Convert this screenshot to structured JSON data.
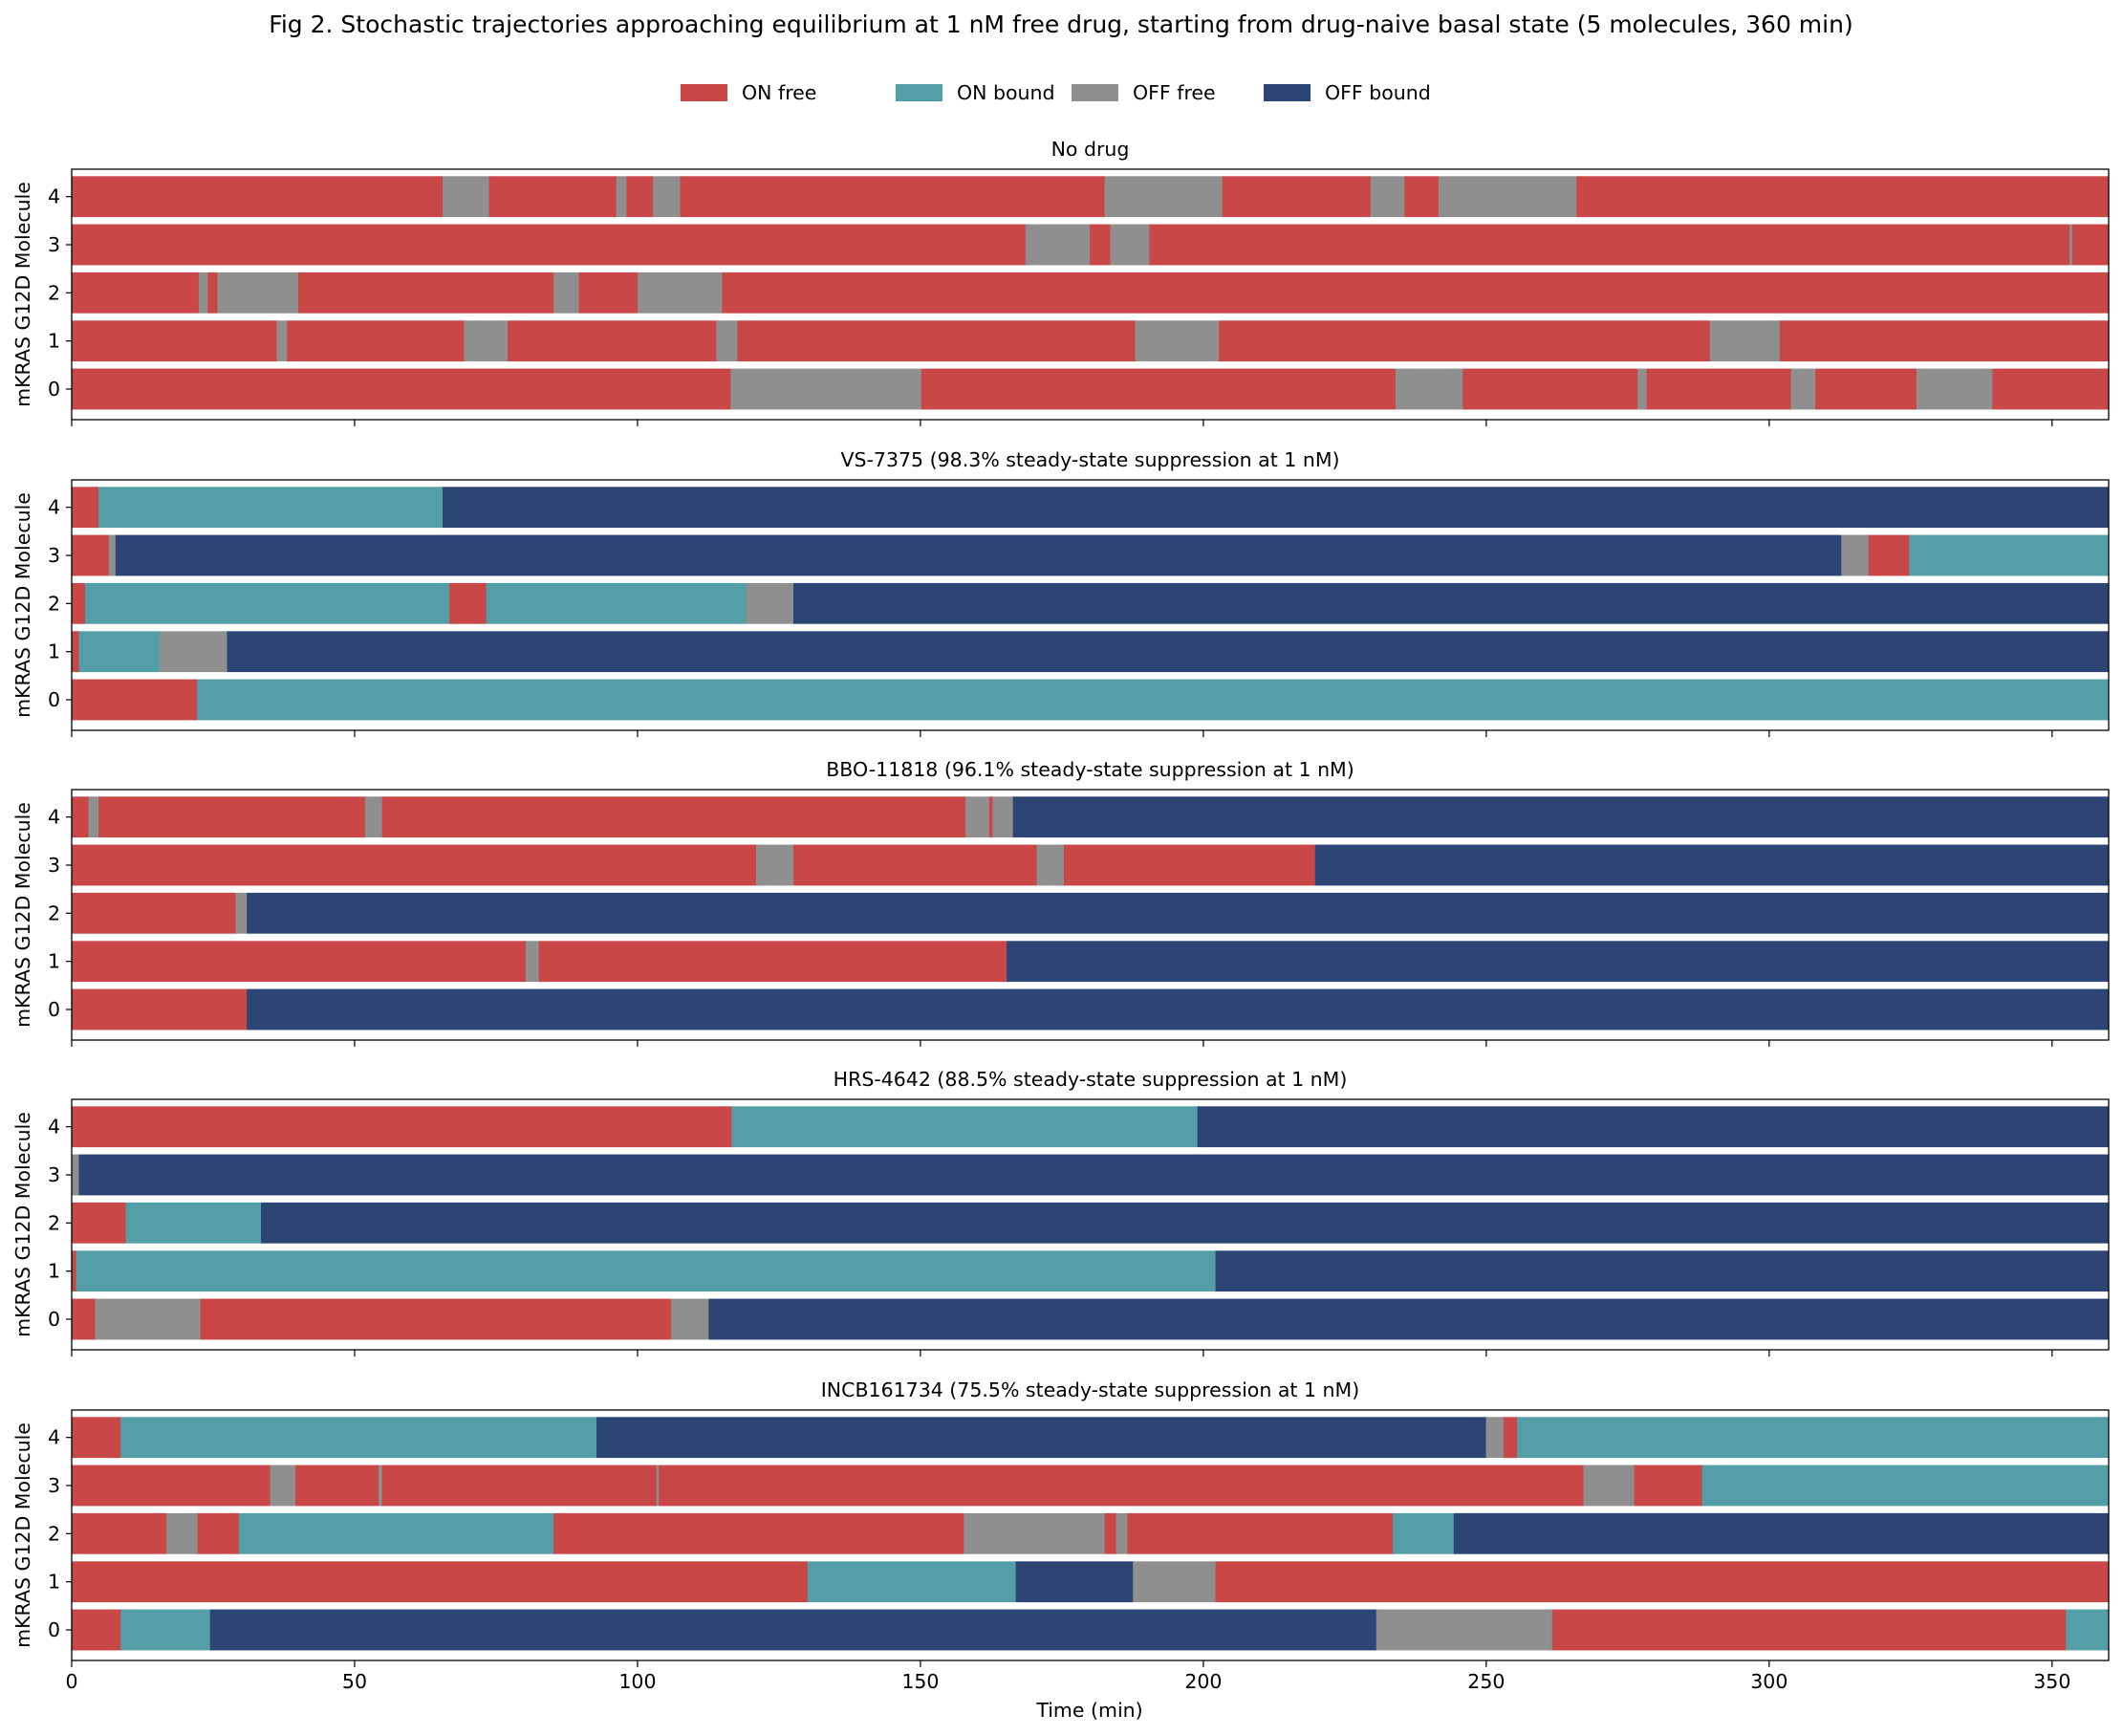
{
  "chart_data": {
    "type": "bar",
    "orientation": "horizontal-stacked-timeline",
    "title": "Fig 2. Stochastic trajectories approaching equilibrium at 1 nM free drug, starting from drug-naive basal state (5 molecules, 360 min)",
    "xlabel": "Time (min)",
    "ylabel": "mKRAS G12D Molecule",
    "xlim": [
      0,
      360
    ],
    "xticks": [
      0,
      50,
      100,
      150,
      200,
      250,
      300,
      350
    ],
    "yticks": [
      0,
      1,
      2,
      3,
      4
    ],
    "legend": {
      "placement": "top-center",
      "entries": [
        {
          "key": "ON_free",
          "label": "ON free",
          "color": "#C94747"
        },
        {
          "key": "ON_bound",
          "label": "ON bound",
          "color": "#549EA8"
        },
        {
          "key": "OFF_free",
          "label": "OFF free",
          "color": "#8F8F8F"
        },
        {
          "key": "OFF_bound",
          "label": "OFF bound",
          "color": "#2C4575"
        }
      ]
    },
    "panels": [
      {
        "title": "No drug",
        "molecules": [
          {
            "id": 0,
            "segments": [
              [
                0,
                116.5,
                "ON_free"
              ],
              [
                116.5,
                150.2,
                "OFF_free"
              ],
              [
                150.2,
                234,
                "ON_free"
              ],
              [
                234,
                245.9,
                "OFF_free"
              ],
              [
                245.9,
                276.8,
                "ON_free"
              ],
              [
                276.8,
                278.4,
                "OFF_free"
              ],
              [
                278.4,
                303.9,
                "ON_free"
              ],
              [
                303.9,
                308.2,
                "OFF_free"
              ],
              [
                308.2,
                326.1,
                "ON_free"
              ],
              [
                326.1,
                339.5,
                "OFF_free"
              ],
              [
                339.5,
                360,
                "ON_free"
              ]
            ]
          },
          {
            "id": 1,
            "segments": [
              [
                0,
                36.3,
                "ON_free"
              ],
              [
                36.3,
                38.1,
                "OFF_free"
              ],
              [
                38.1,
                69.4,
                "ON_free"
              ],
              [
                69.4,
                77.1,
                "OFF_free"
              ],
              [
                77.1,
                114,
                "ON_free"
              ],
              [
                114,
                117.7,
                "OFF_free"
              ],
              [
                117.7,
                188,
                "ON_free"
              ],
              [
                188,
                202.8,
                "OFF_free"
              ],
              [
                202.8,
                289.6,
                "ON_free"
              ],
              [
                289.6,
                301.9,
                "OFF_free"
              ],
              [
                301.9,
                360,
                "ON_free"
              ]
            ]
          },
          {
            "id": 2,
            "segments": [
              [
                0,
                22.5,
                "ON_free"
              ],
              [
                22.5,
                24.1,
                "OFF_free"
              ],
              [
                24.1,
                25.8,
                "ON_free"
              ],
              [
                25.8,
                40.1,
                "OFF_free"
              ],
              [
                40.1,
                85.2,
                "ON_free"
              ],
              [
                85.2,
                89.7,
                "OFF_free"
              ],
              [
                89.7,
                100.1,
                "ON_free"
              ],
              [
                100.1,
                115,
                "OFF_free"
              ],
              [
                115,
                360,
                "ON_free"
              ]
            ]
          },
          {
            "id": 3,
            "segments": [
              [
                0,
                168.6,
                "ON_free"
              ],
              [
                168.6,
                180,
                "OFF_free"
              ],
              [
                180,
                183.6,
                "ON_free"
              ],
              [
                183.6,
                190.5,
                "OFF_free"
              ],
              [
                190.5,
                353.1,
                "ON_free"
              ],
              [
                353.1,
                353.6,
                "OFF_free"
              ],
              [
                353.6,
                360,
                "ON_free"
              ]
            ]
          },
          {
            "id": 4,
            "segments": [
              [
                0,
                65.6,
                "ON_free"
              ],
              [
                65.6,
                73.8,
                "OFF_free"
              ],
              [
                73.8,
                96.3,
                "ON_free"
              ],
              [
                96.3,
                98.1,
                "OFF_free"
              ],
              [
                98.1,
                102.8,
                "ON_free"
              ],
              [
                102.8,
                107.6,
                "OFF_free"
              ],
              [
                107.6,
                182.6,
                "ON_free"
              ],
              [
                182.6,
                203.4,
                "OFF_free"
              ],
              [
                203.4,
                229.6,
                "ON_free"
              ],
              [
                229.6,
                235.6,
                "OFF_free"
              ],
              [
                235.6,
                241.6,
                "ON_free"
              ],
              [
                241.6,
                266,
                "OFF_free"
              ],
              [
                266,
                360,
                "ON_free"
              ]
            ]
          }
        ]
      },
      {
        "title": "VS-7375 (98.3% steady-state suppression at 1 nM)",
        "molecules": [
          {
            "id": 0,
            "segments": [
              [
                0,
                22.2,
                "ON_free"
              ],
              [
                22.2,
                360,
                "ON_bound"
              ]
            ]
          },
          {
            "id": 1,
            "segments": [
              [
                0,
                1.3,
                "ON_free"
              ],
              [
                1.3,
                15.6,
                "ON_bound"
              ],
              [
                15.6,
                27.5,
                "OFF_free"
              ],
              [
                27.5,
                360,
                "OFF_bound"
              ]
            ]
          },
          {
            "id": 2,
            "segments": [
              [
                0,
                2.4,
                "ON_free"
              ],
              [
                2.4,
                66.8,
                "ON_bound"
              ],
              [
                66.8,
                73.3,
                "ON_free"
              ],
              [
                73.3,
                119.3,
                "ON_bound"
              ],
              [
                119.3,
                127.6,
                "OFF_free"
              ],
              [
                127.6,
                360,
                "OFF_bound"
              ]
            ]
          },
          {
            "id": 3,
            "segments": [
              [
                0,
                6.6,
                "ON_free"
              ],
              [
                6.6,
                7.8,
                "OFF_free"
              ],
              [
                7.8,
                312.8,
                "OFF_bound"
              ],
              [
                312.8,
                317.6,
                "OFF_free"
              ],
              [
                317.6,
                324.8,
                "ON_free"
              ],
              [
                324.8,
                360,
                "ON_bound"
              ]
            ]
          },
          {
            "id": 4,
            "segments": [
              [
                0,
                4.8,
                "ON_free"
              ],
              [
                4.8,
                65.6,
                "ON_bound"
              ],
              [
                65.6,
                360,
                "OFF_bound"
              ]
            ]
          }
        ]
      },
      {
        "title": "BBO-11818 (96.1% steady-state suppression at 1 nM)",
        "molecules": [
          {
            "id": 0,
            "segments": [
              [
                0,
                31,
                "ON_free"
              ],
              [
                31,
                360,
                "OFF_bound"
              ]
            ]
          },
          {
            "id": 1,
            "segments": [
              [
                0,
                80.3,
                "ON_free"
              ],
              [
                80.3,
                82.6,
                "OFF_free"
              ],
              [
                82.6,
                165.3,
                "ON_free"
              ],
              [
                165.3,
                360,
                "OFF_bound"
              ]
            ]
          },
          {
            "id": 2,
            "segments": [
              [
                0,
                29,
                "ON_free"
              ],
              [
                29,
                31,
                "OFF_free"
              ],
              [
                31,
                360,
                "OFF_bound"
              ]
            ]
          },
          {
            "id": 3,
            "segments": [
              [
                0,
                121,
                "ON_free"
              ],
              [
                121,
                127.6,
                "OFF_free"
              ],
              [
                127.6,
                170.6,
                "ON_free"
              ],
              [
                170.6,
                175.4,
                "OFF_free"
              ],
              [
                175.4,
                219.8,
                "ON_free"
              ],
              [
                219.8,
                360,
                "OFF_bound"
              ]
            ]
          },
          {
            "id": 4,
            "segments": [
              [
                0,
                3,
                "ON_free"
              ],
              [
                3,
                4.8,
                "OFF_free"
              ],
              [
                4.8,
                51.9,
                "ON_free"
              ],
              [
                51.9,
                54.9,
                "OFF_free"
              ],
              [
                54.9,
                124.6,
                "ON_free"
              ],
              [
                124.6,
                158,
                "ON_free"
              ],
              [
                158,
                162.2,
                "OFF_free"
              ],
              [
                162.2,
                162.8,
                "ON_free"
              ],
              [
                162.8,
                166.4,
                "OFF_free"
              ],
              [
                166.4,
                360,
                "OFF_bound"
              ]
            ]
          }
        ]
      },
      {
        "title": "HRS-4642 (88.5% steady-state suppression at 1 nM)",
        "molecules": [
          {
            "id": 0,
            "segments": [
              [
                0,
                4.2,
                "ON_free"
              ],
              [
                4.2,
                22.8,
                "OFF_free"
              ],
              [
                22.8,
                106,
                "ON_free"
              ],
              [
                106,
                112.6,
                "OFF_free"
              ],
              [
                112.6,
                360,
                "OFF_bound"
              ]
            ]
          },
          {
            "id": 1,
            "segments": [
              [
                0,
                0.8,
                "ON_free"
              ],
              [
                0.8,
                202.2,
                "ON_bound"
              ],
              [
                202.2,
                360,
                "OFF_bound"
              ]
            ]
          },
          {
            "id": 2,
            "segments": [
              [
                0,
                9.6,
                "ON_free"
              ],
              [
                9.6,
                33.5,
                "ON_bound"
              ],
              [
                33.5,
                360,
                "OFF_bound"
              ]
            ]
          },
          {
            "id": 3,
            "segments": [
              [
                0,
                1.3,
                "OFF_free"
              ],
              [
                1.3,
                360,
                "OFF_bound"
              ]
            ]
          },
          {
            "id": 4,
            "segments": [
              [
                0,
                116.7,
                "ON_free"
              ],
              [
                116.7,
                199,
                "ON_bound"
              ],
              [
                199,
                360,
                "OFF_bound"
              ]
            ]
          }
        ]
      },
      {
        "title": "INCB161734 (75.5% steady-state suppression at 1 nM)",
        "molecules": [
          {
            "id": 0,
            "segments": [
              [
                0,
                8.7,
                "ON_free"
              ],
              [
                8.7,
                24.5,
                "ON_bound"
              ],
              [
                24.5,
                230.6,
                "OFF_bound"
              ],
              [
                230.6,
                261.7,
                "OFF_free"
              ],
              [
                261.7,
                352.5,
                "ON_free"
              ],
              [
                352.5,
                360,
                "ON_bound"
              ]
            ]
          },
          {
            "id": 1,
            "segments": [
              [
                0,
                130.1,
                "ON_free"
              ],
              [
                130.1,
                166.9,
                "ON_bound"
              ],
              [
                166.9,
                187.6,
                "OFF_bound"
              ],
              [
                187.6,
                202.2,
                "OFF_free"
              ],
              [
                202.2,
                360,
                "ON_free"
              ]
            ]
          },
          {
            "id": 2,
            "segments": [
              [
                0,
                16.8,
                "ON_free"
              ],
              [
                16.8,
                22.3,
                "OFF_free"
              ],
              [
                22.3,
                29.6,
                "ON_free"
              ],
              [
                29.6,
                85.2,
                "ON_bound"
              ],
              [
                85.2,
                157.7,
                "ON_free"
              ],
              [
                157.7,
                182.6,
                "OFF_free"
              ],
              [
                182.6,
                184.6,
                "ON_free"
              ],
              [
                184.6,
                186.6,
                "OFF_free"
              ],
              [
                186.6,
                233.5,
                "ON_free"
              ],
              [
                233.5,
                244.3,
                "ON_bound"
              ],
              [
                244.3,
                360,
                "OFF_bound"
              ]
            ]
          },
          {
            "id": 3,
            "segments": [
              [
                0,
                35.1,
                "ON_free"
              ],
              [
                35.1,
                39.6,
                "OFF_free"
              ],
              [
                39.6,
                54.3,
                "ON_free"
              ],
              [
                54.3,
                54.9,
                "OFF_free"
              ],
              [
                54.9,
                103.4,
                "ON_free"
              ],
              [
                103.4,
                103.8,
                "OFF_free"
              ],
              [
                103.8,
                267.2,
                "ON_free"
              ],
              [
                267.2,
                276.2,
                "OFF_free"
              ],
              [
                276.2,
                288.2,
                "ON_free"
              ],
              [
                288.2,
                360,
                "ON_bound"
              ]
            ]
          },
          {
            "id": 4,
            "segments": [
              [
                0,
                8.7,
                "ON_free"
              ],
              [
                8.7,
                92.8,
                "ON_bound"
              ],
              [
                92.8,
                250,
                "OFF_bound"
              ],
              [
                250,
                253.1,
                "OFF_free"
              ],
              [
                253.1,
                255.5,
                "ON_free"
              ],
              [
                255.5,
                360,
                "ON_bound"
              ]
            ]
          }
        ]
      }
    ]
  }
}
